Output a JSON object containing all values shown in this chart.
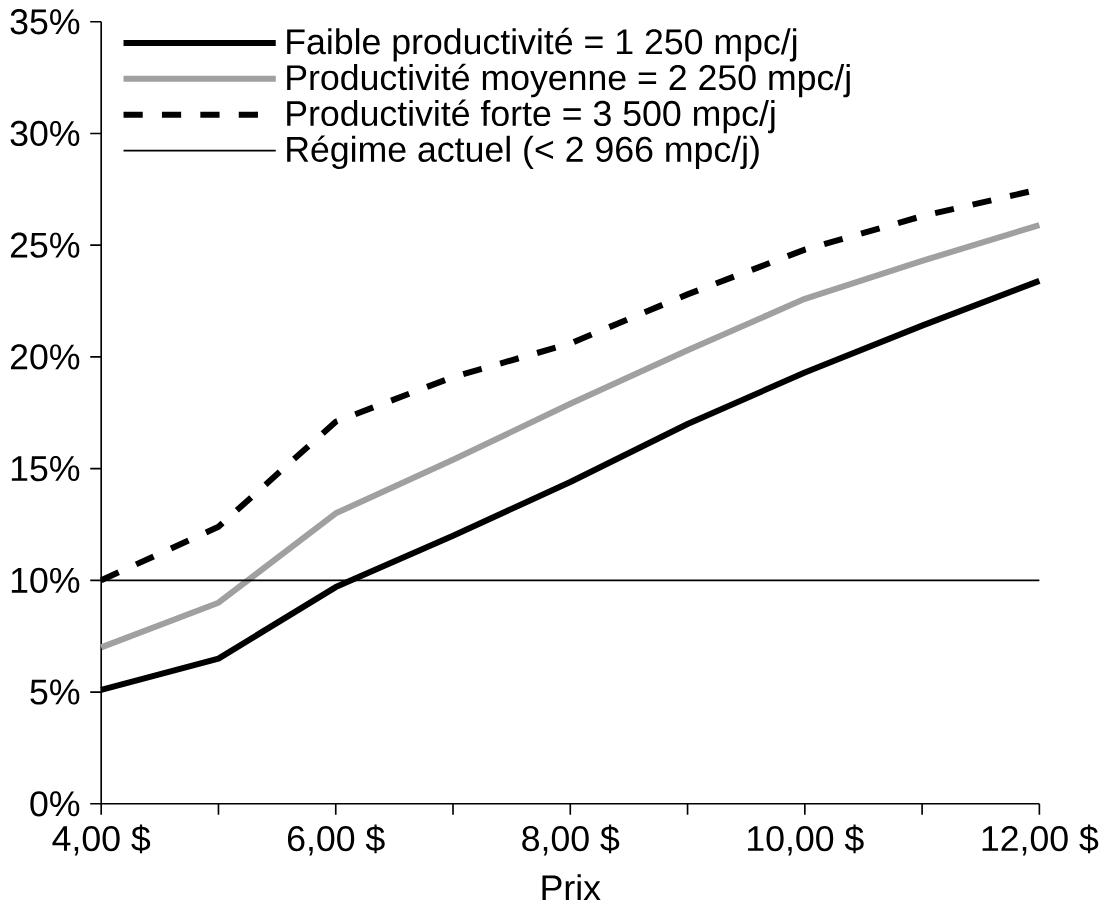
{
  "chart_data": {
    "type": "line",
    "xlabel": "Prix",
    "x": [
      4,
      5,
      6,
      7,
      8,
      9,
      10,
      11,
      12
    ],
    "xlim": [
      4,
      12
    ],
    "xticks": [
      {
        "value": 4,
        "label": "4,00 $"
      },
      {
        "value": 5,
        "label": null
      },
      {
        "value": 6,
        "label": "6,00 $"
      },
      {
        "value": 7,
        "label": null
      },
      {
        "value": 8,
        "label": "8,00 $"
      },
      {
        "value": 9,
        "label": null
      },
      {
        "value": 10,
        "label": "10,00 $"
      },
      {
        "value": 11,
        "label": null
      },
      {
        "value": 12,
        "label": "12,00 $"
      }
    ],
    "ylim": [
      0,
      35
    ],
    "yticks": [
      {
        "value": 0,
        "label": "0%"
      },
      {
        "value": 5,
        "label": "5%"
      },
      {
        "value": 10,
        "label": "10%"
      },
      {
        "value": 15,
        "label": "15%"
      },
      {
        "value": 20,
        "label": "20%"
      },
      {
        "value": 25,
        "label": "25%"
      },
      {
        "value": 30,
        "label": "30%"
      },
      {
        "value": 35,
        "label": "35%"
      }
    ],
    "series": [
      {
        "name": "Faible productivité = 1 250 mpc/j",
        "color": "#000000",
        "line_style": "solid",
        "values": [
          5.1,
          6.5,
          9.7,
          12.0,
          14.4,
          17.0,
          19.3,
          21.4,
          23.4
        ]
      },
      {
        "name": "Productivité moyenne = 2 250 mpc/j",
        "color": "#a0a0a0",
        "line_style": "solid",
        "values": [
          7.0,
          9.0,
          13.0,
          15.4,
          17.9,
          20.3,
          22.6,
          24.3,
          25.9
        ]
      },
      {
        "name": "Productivité forte = 3 500 mpc/j",
        "color": "#000000",
        "line_style": "dashed",
        "values": [
          10.0,
          12.4,
          17.1,
          19.1,
          20.6,
          22.8,
          24.8,
          26.3,
          27.5
        ]
      }
    ],
    "ref_lines": [
      {
        "axis": "y",
        "value": 10,
        "label": "Régime actuel (< 2 966 mpc/j)",
        "color": "#000000"
      }
    ],
    "legend": "top left",
    "grid": false,
    "marker": "none"
  }
}
